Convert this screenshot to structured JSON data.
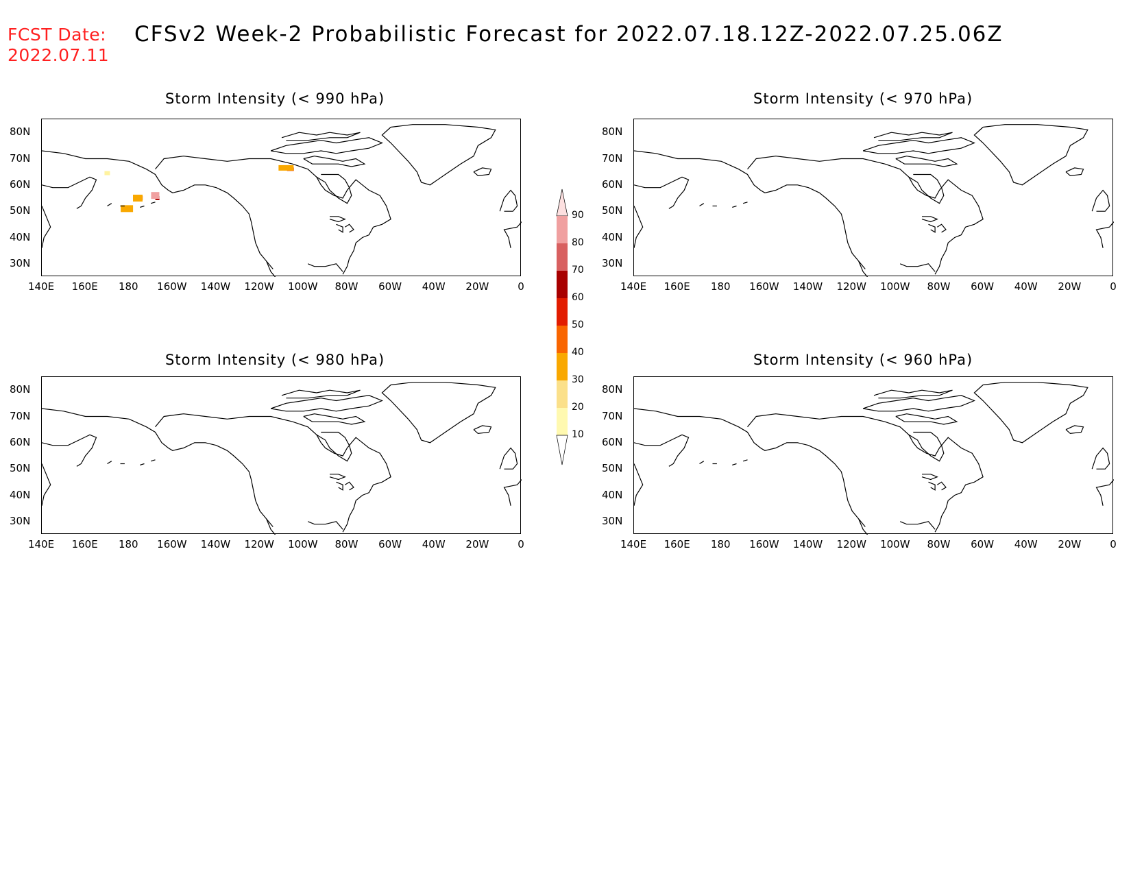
{
  "header": {
    "fcst_label": "FCST Date:",
    "fcst_date": "2022.07.11",
    "title": "CFSv2 Week-2 Probabilistic Forecast for 2022.07.18.12Z-2022.07.25.06Z"
  },
  "axis": {
    "lat_ticks": [
      "80N",
      "70N",
      "60N",
      "50N",
      "40N",
      "30N"
    ],
    "lon_ticks": [
      "140E",
      "160E",
      "180",
      "160W",
      "140W",
      "120W",
      "100W",
      "80W",
      "60W",
      "40W",
      "20W",
      "0"
    ]
  },
  "panels": [
    {
      "title": "Storm Intensity (< 990 hPa)",
      "has_data": true
    },
    {
      "title": "Storm Intensity (< 970 hPa)",
      "has_data": false
    },
    {
      "title": "Storm Intensity (< 980 hPa)",
      "has_data": false
    },
    {
      "title": "Storm Intensity (< 960 hPa)",
      "has_data": false
    }
  ],
  "colorbar": {
    "levels": [
      "10",
      "20",
      "30",
      "40",
      "50",
      "60",
      "70",
      "80",
      "90"
    ],
    "colors": [
      "#fff9b0",
      "#fbe08a",
      "#f9a800",
      "#f96500",
      "#e21c00",
      "#a80000",
      "#d86060",
      "#f0a0a0",
      "#fde0e0"
    ]
  }
}
